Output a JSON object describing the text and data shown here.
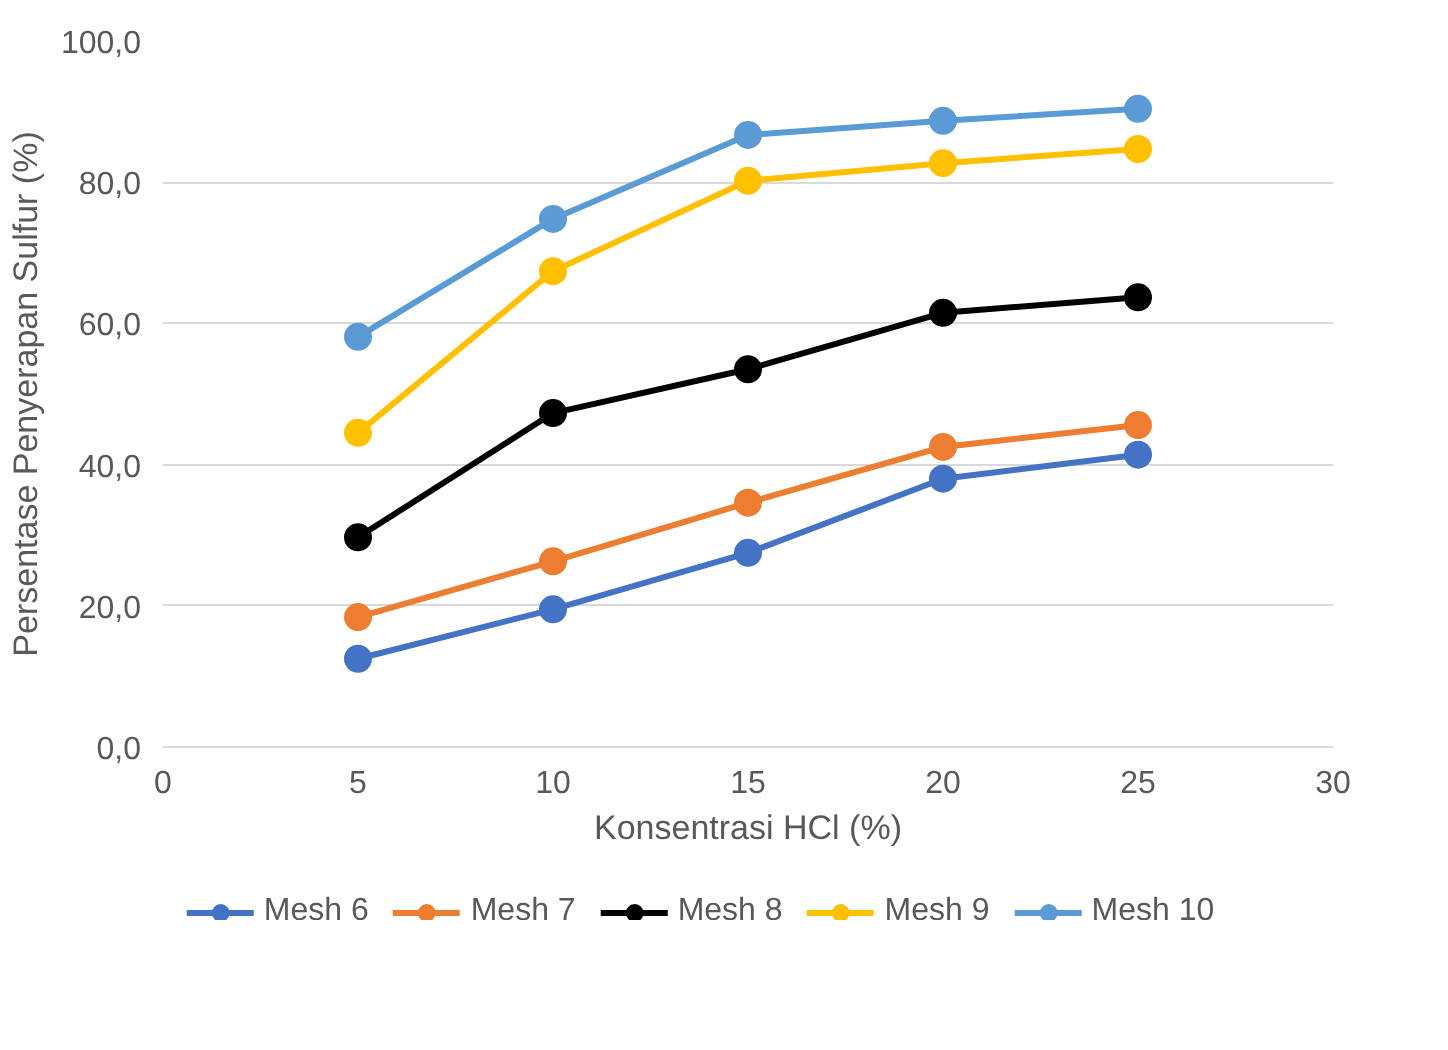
{
  "chart_data": {
    "type": "line",
    "xlabel": "Konsentrasi HCl (%)",
    "ylabel": "Persentase Penyerapan Sulfur (%)",
    "x": [
      5,
      10,
      15,
      20,
      25
    ],
    "series": [
      {
        "name": "Mesh 6",
        "color": "#4472c4",
        "values": [
          12.5,
          19.5,
          27.5,
          38.0,
          41.4
        ]
      },
      {
        "name": "Mesh 7",
        "color": "#ed7d31",
        "values": [
          18.4,
          26.3,
          34.6,
          42.5,
          45.6
        ]
      },
      {
        "name": "Mesh 8",
        "color": "#000000",
        "values": [
          29.7,
          47.3,
          53.5,
          61.5,
          63.7
        ]
      },
      {
        "name": "Mesh 9",
        "color": "#ffc000",
        "values": [
          44.5,
          67.4,
          80.2,
          82.7,
          84.7
        ]
      },
      {
        "name": "Mesh 10",
        "color": "#5b9bd5",
        "values": [
          58.1,
          74.8,
          86.7,
          88.7,
          90.4
        ]
      }
    ],
    "xlim": [
      0,
      30
    ],
    "xticks": [
      0,
      5,
      10,
      15,
      20,
      25,
      30
    ],
    "ylim": [
      0,
      100
    ],
    "yticks": [
      {
        "value": 0,
        "label": "0,0"
      },
      {
        "value": 20,
        "label": "20,0"
      },
      {
        "value": 40,
        "label": "40,0"
      },
      {
        "value": 60,
        "label": "60,0"
      },
      {
        "value": 80,
        "label": "80,0"
      },
      {
        "value": 100,
        "label": "100,0"
      }
    ],
    "grid": "y",
    "legend": "bottom",
    "marker": "circle",
    "line_style": "solid"
  }
}
